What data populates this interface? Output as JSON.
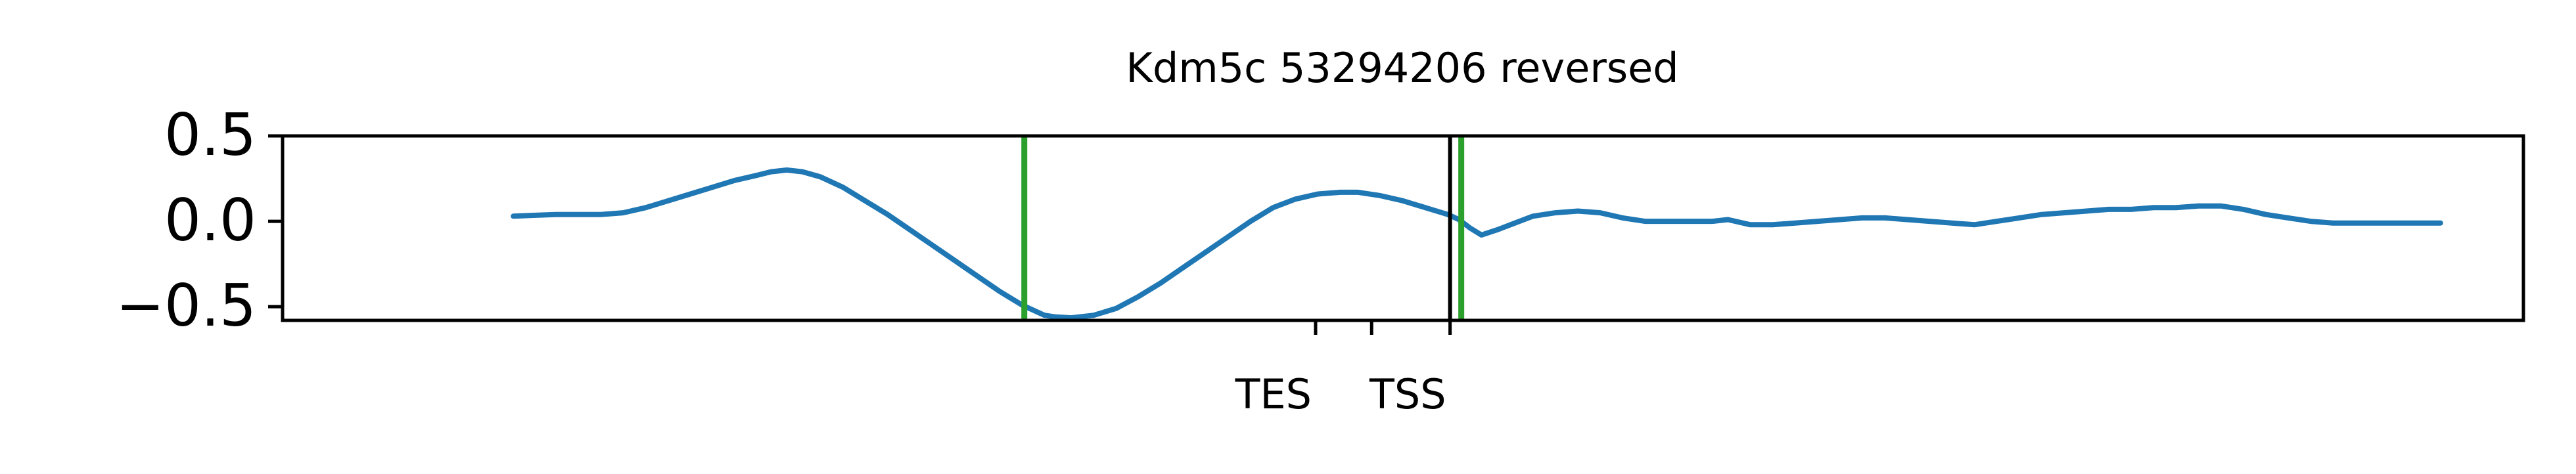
{
  "chart_data": {
    "type": "line",
    "title": "Kdm5c 53294206 reversed",
    "xlabel": "",
    "ylabel": "",
    "ylim": [
      -0.58,
      0.5
    ],
    "xlim": [
      0,
      1000
    ],
    "yticks": [
      {
        "value": 0.5,
        "label": "0.5"
      },
      {
        "value": 0.0,
        "label": "0.0"
      },
      {
        "value": -0.5,
        "label": "−0.5"
      }
    ],
    "xticks": [
      {
        "value": 461,
        "label": "TES"
      },
      {
        "value": 486,
        "label": ""
      },
      {
        "value": 521,
        "label": "TSS"
      }
    ],
    "grid": false,
    "series": [
      {
        "color": "#1f77b4",
        "points": [
          [
            103,
            0.03
          ],
          [
            112,
            0.035
          ],
          [
            122,
            0.04
          ],
          [
            132,
            0.04
          ],
          [
            142,
            0.04
          ],
          [
            152,
            0.05
          ],
          [
            162,
            0.08
          ],
          [
            172,
            0.12
          ],
          [
            182,
            0.16
          ],
          [
            192,
            0.2
          ],
          [
            202,
            0.24
          ],
          [
            212,
            0.27
          ],
          [
            218,
            0.29
          ],
          [
            225,
            0.3
          ],
          [
            232,
            0.29
          ],
          [
            240,
            0.26
          ],
          [
            250,
            0.2
          ],
          [
            260,
            0.12
          ],
          [
            270,
            0.04
          ],
          [
            280,
            -0.05
          ],
          [
            290,
            -0.14
          ],
          [
            300,
            -0.23
          ],
          [
            310,
            -0.32
          ],
          [
            320,
            -0.41
          ],
          [
            330,
            -0.49
          ],
          [
            340,
            -0.55
          ],
          [
            345,
            -0.56
          ],
          [
            352,
            -0.565
          ],
          [
            362,
            -0.55
          ],
          [
            372,
            -0.51
          ],
          [
            382,
            -0.44
          ],
          [
            392,
            -0.36
          ],
          [
            402,
            -0.27
          ],
          [
            412,
            -0.18
          ],
          [
            422,
            -0.09
          ],
          [
            432,
            0.0
          ],
          [
            442,
            0.08
          ],
          [
            452,
            0.13
          ],
          [
            462,
            0.16
          ],
          [
            472,
            0.17
          ],
          [
            480,
            0.17
          ],
          [
            490,
            0.15
          ],
          [
            500,
            0.12
          ],
          [
            510,
            0.08
          ],
          [
            520,
            0.04
          ],
          [
            525,
            0.01
          ],
          [
            530,
            -0.04
          ],
          [
            535,
            -0.08
          ],
          [
            542,
            -0.05
          ],
          [
            548,
            -0.02
          ],
          [
            558,
            0.03
          ],
          [
            568,
            0.05
          ],
          [
            578,
            0.06
          ],
          [
            588,
            0.05
          ],
          [
            598,
            0.02
          ],
          [
            608,
            0.0
          ],
          [
            618,
            0.0
          ],
          [
            628,
            0.0
          ],
          [
            638,
            0.0
          ],
          [
            645,
            0.01
          ],
          [
            655,
            -0.02
          ],
          [
            665,
            -0.02
          ],
          [
            675,
            -0.01
          ],
          [
            685,
            0.0
          ],
          [
            695,
            0.01
          ],
          [
            705,
            0.02
          ],
          [
            715,
            0.02
          ],
          [
            725,
            0.01
          ],
          [
            735,
            0.0
          ],
          [
            745,
            -0.01
          ],
          [
            755,
            -0.02
          ],
          [
            765,
            0.0
          ],
          [
            775,
            0.02
          ],
          [
            785,
            0.04
          ],
          [
            795,
            0.05
          ],
          [
            805,
            0.06
          ],
          [
            815,
            0.07
          ],
          [
            825,
            0.07
          ],
          [
            835,
            0.08
          ],
          [
            845,
            0.08
          ],
          [
            855,
            0.09
          ],
          [
            865,
            0.09
          ],
          [
            875,
            0.07
          ],
          [
            885,
            0.04
          ],
          [
            895,
            0.02
          ],
          [
            905,
            0.0
          ],
          [
            915,
            -0.01
          ],
          [
            925,
            -0.01
          ],
          [
            935,
            -0.01
          ],
          [
            945,
            -0.01
          ],
          [
            955,
            -0.01
          ],
          [
            963,
            -0.01
          ]
        ]
      }
    ],
    "vertical_lines": [
      {
        "x": 331,
        "color": "#2ca02c"
      },
      {
        "x": 521,
        "color": "#000000"
      },
      {
        "x": 526,
        "color": "#2ca02c"
      }
    ]
  }
}
